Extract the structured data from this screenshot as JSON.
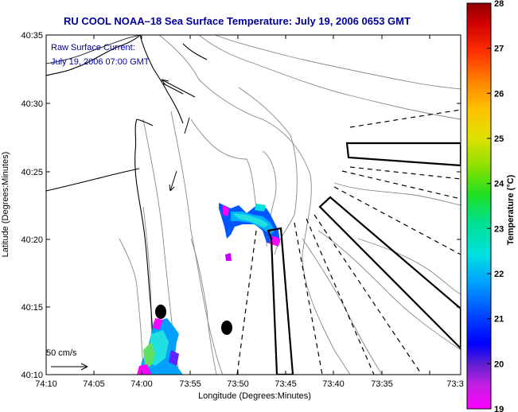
{
  "title": "RU COOL  NOAA–18  Sea Surface Temperature:  July 19, 2006 0653 GMT",
  "current_label_line1": "Raw Surface Current:",
  "current_label_line2": "July 19, 2006 07:00 GMT",
  "scale_label": "50 cm/s",
  "x_axis_label": "Longitude (Degrees:Minutes)",
  "y_axis_label": "Latitude (Degrees:Minutes)",
  "colorbar_label": "Temperature (°C)",
  "x_ticks": [
    "74:10",
    "74:05",
    "74:00",
    "73:55",
    "73:50",
    "73:45",
    "73:40",
    "73:35",
    "73:3"
  ],
  "y_ticks": [
    "40:35",
    "40:30",
    "40:25",
    "40:20",
    "40:15",
    "40:10"
  ],
  "colorbar_ticks": [
    "28",
    "27",
    "26",
    "25",
    "24",
    "23",
    "22",
    "21",
    "20",
    "19"
  ],
  "colors": {
    "title": "#00009a",
    "current_label": "#00009a",
    "land": "#ffffff",
    "bathymetry": "#888888"
  }
}
